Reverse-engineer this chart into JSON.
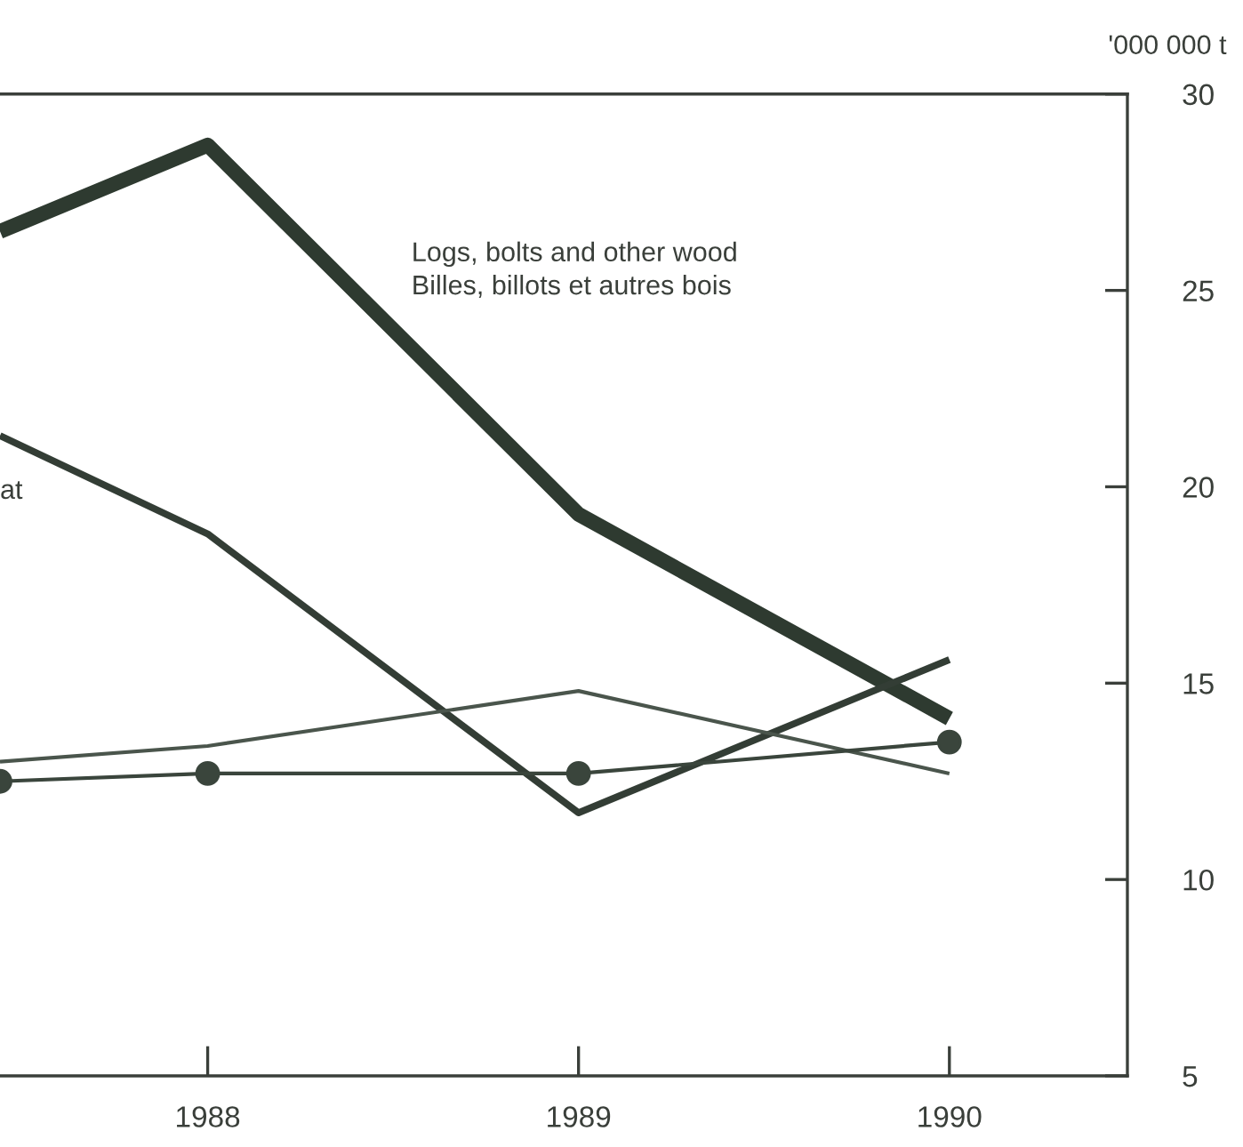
{
  "chart_data": {
    "type": "line",
    "ylabel": "'000 000 t",
    "series": [
      {
        "name": "Logs, bolts and other wood\nBilles, billots et autres bois",
        "color": "#2e3a30",
        "x": [
          1987.44,
          1988,
          1989,
          1990
        ],
        "values": [
          26.5,
          28.7,
          19.3,
          14.1
        ]
      },
      {
        "color": "#333d35",
        "x": [
          1987.44,
          1988,
          1989,
          1990
        ],
        "values": [
          21.3,
          18.8,
          11.7,
          15.6
        ]
      },
      {
        "color": "#4a554c",
        "x": [
          1987.44,
          1988,
          1989,
          1990
        ],
        "values": [
          13.0,
          13.4,
          14.8,
          12.7
        ]
      },
      {
        "color": "#3a453c",
        "marker": "circle",
        "x": [
          1987.44,
          1988,
          1989,
          1990
        ],
        "values": [
          12.5,
          12.7,
          12.7,
          13.5
        ]
      }
    ],
    "annotations": [
      "at"
    ],
    "xlim": [
      1987.44,
      1990.48
    ],
    "xticks": [
      1988,
      1989,
      1990
    ],
    "ylim": [
      5,
      30
    ],
    "yticks": [
      5,
      10,
      15,
      20,
      25,
      30
    ],
    "grid": false,
    "legend": false,
    "marker": "none"
  }
}
